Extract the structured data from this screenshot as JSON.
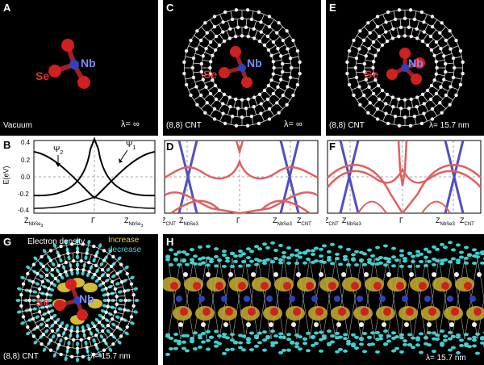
{
  "panels": {
    "A": {
      "label": "A",
      "caption": "Vacuum",
      "lambda": "λ= ∞",
      "se": "Se",
      "nb": "Nb"
    },
    "C": {
      "label": "C",
      "caption": "(8,8) CNT",
      "lambda": "λ= ∞",
      "se": "Se",
      "nb": "Nb"
    },
    "E": {
      "label": "E",
      "caption": "(8,8) CNT",
      "lambda": "λ= 15.7 nm",
      "se": "Se",
      "nb": "Nb"
    },
    "B": {
      "label": "B",
      "ylabel": "E(eV)",
      "yticks": [
        "0.4",
        "0.2",
        "0.0",
        "-0.2",
        "-0.4"
      ],
      "psi2": "Ψ",
      "psi2_sub": "2",
      "psi1": "Ψ",
      "psi1_sub": "1",
      "xticks": [
        "Z",
        "Γ",
        "Z"
      ],
      "xsub": "NbSe",
      "xsub3": "3"
    },
    "D": {
      "label": "D",
      "xticks": [
        "Z",
        "Z",
        "Γ",
        "Z",
        "Z"
      ],
      "subs": [
        "CNT",
        "NbSe3",
        "",
        "NbSe3",
        "CNT"
      ]
    },
    "F": {
      "label": "F",
      "xticks": [
        "Z",
        "Z",
        "Γ",
        "Z",
        "Z"
      ],
      "subs": [
        "CNT",
        "NbSe3",
        "",
        "NbSe3",
        "CNT"
      ]
    },
    "G": {
      "label": "G",
      "density": "Electron density",
      "increase": "Increase",
      "decrease": "decrease",
      "caption": "(8,8) CNT",
      "lambda": "λ= 15.7 nm",
      "se": "Se",
      "nb": "Nb"
    },
    "H": {
      "label": "H",
      "lambda": "λ= 15.7 nm"
    }
  },
  "colors": {
    "red_band": "#e06060",
    "blue_band": "#5050c0",
    "cyan": "#40d0d0",
    "yellow": "#e8d040",
    "se_red": "#e03030",
    "nb_blue": "#7a8cff"
  }
}
